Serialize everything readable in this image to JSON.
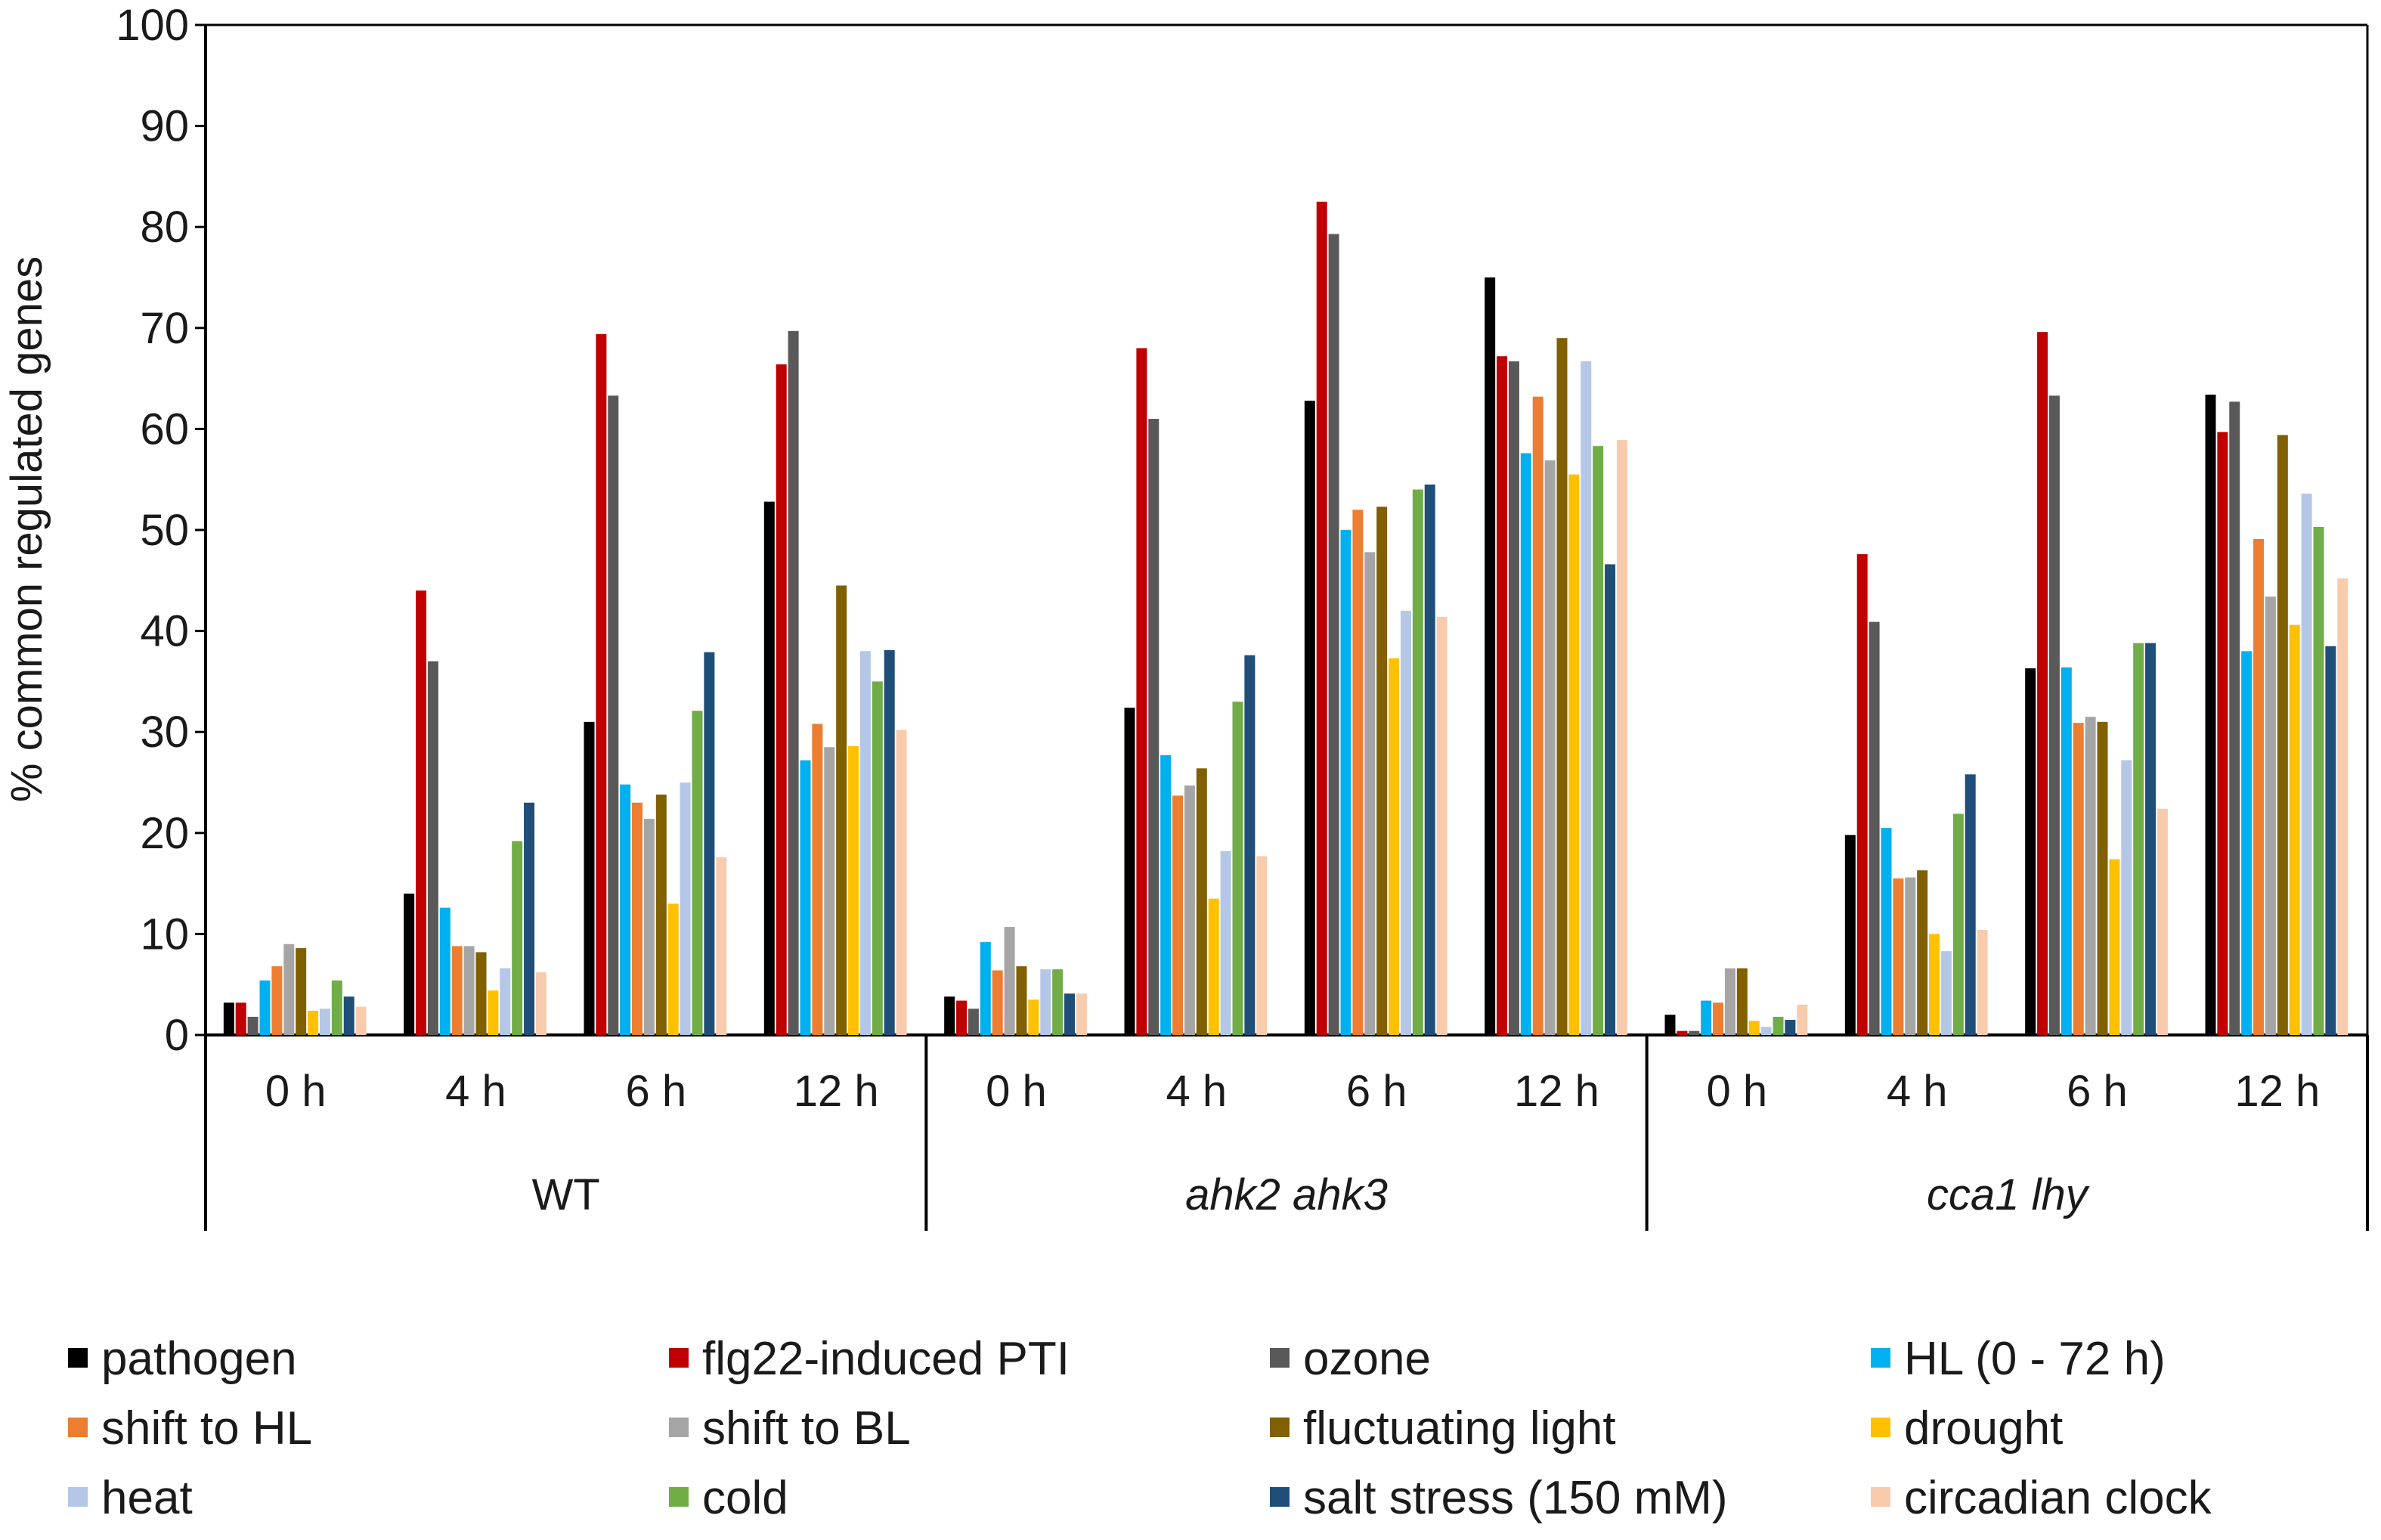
{
  "chart_data": {
    "type": "bar",
    "title": "",
    "xlabel": "",
    "ylabel": "% common regulated genes",
    "ylim": [
      0,
      100
    ],
    "yticks": [
      0,
      10,
      20,
      30,
      40,
      50,
      60,
      70,
      80,
      90,
      100
    ],
    "grid": false,
    "legend_position": "bottom",
    "groups": [
      {
        "label": "WT",
        "italic": false
      },
      {
        "label": "ahk2 ahk3",
        "italic": true
      },
      {
        "label": "cca1 lhy",
        "italic": true
      }
    ],
    "timepoints": [
      "0 h",
      "4 h",
      "6 h",
      "12 h"
    ],
    "categories": [
      "WT 0 h",
      "WT 4 h",
      "WT 6 h",
      "WT 12 h",
      "ahk2 ahk3 0 h",
      "ahk2 ahk3 4 h",
      "ahk2 ahk3 6 h",
      "ahk2 ahk3 12 h",
      "cca1 lhy 0 h",
      "cca1 lhy 4 h",
      "cca1 lhy 6 h",
      "cca1 lhy 12 h"
    ],
    "series": [
      {
        "name": "pathogen",
        "color": "#000000",
        "values": [
          3.2,
          14.0,
          31.0,
          52.8,
          3.8,
          32.4,
          62.8,
          75.0,
          2.0,
          19.8,
          36.3,
          63.4
        ]
      },
      {
        "name": "flg22-induced PTI",
        "color": "#c00000",
        "values": [
          3.2,
          44.0,
          69.4,
          66.4,
          3.4,
          68.0,
          82.5,
          67.2,
          0.4,
          47.6,
          69.6,
          59.7
        ]
      },
      {
        "name": "ozone",
        "color": "#595959",
        "values": [
          1.8,
          37.0,
          63.3,
          69.7,
          2.6,
          61.0,
          79.3,
          66.7,
          0.4,
          40.9,
          63.3,
          62.7
        ]
      },
      {
        "name": "HL (0 - 72 h)",
        "color": "#00b0f0",
        "values": [
          5.4,
          12.6,
          24.8,
          27.2,
          9.2,
          27.7,
          50.0,
          57.6,
          3.4,
          20.5,
          36.4,
          38.0
        ]
      },
      {
        "name": "shift to HL",
        "color": "#ed7d31",
        "values": [
          6.8,
          8.8,
          23.0,
          30.8,
          6.4,
          23.7,
          52.0,
          63.2,
          3.2,
          15.5,
          30.9,
          49.1
        ]
      },
      {
        "name": "shift to BL",
        "color": "#a5a5a5",
        "values": [
          9.0,
          8.8,
          21.4,
          28.5,
          10.7,
          24.7,
          47.8,
          56.9,
          6.6,
          15.6,
          31.5,
          43.4
        ]
      },
      {
        "name": "fluctuating light",
        "color": "#806000",
        "values": [
          8.6,
          8.2,
          23.8,
          44.5,
          6.8,
          26.4,
          52.3,
          69.0,
          6.6,
          16.3,
          31.0,
          59.4
        ]
      },
      {
        "name": "drought",
        "color": "#ffc000",
        "values": [
          2.4,
          4.4,
          13.0,
          28.6,
          3.5,
          13.5,
          37.3,
          55.5,
          1.4,
          10.0,
          17.4,
          40.6
        ]
      },
      {
        "name": "heat",
        "color": "#b4c7e7",
        "values": [
          2.6,
          6.6,
          25.0,
          38.0,
          6.5,
          18.2,
          42.0,
          66.7,
          0.8,
          8.3,
          27.2,
          53.6
        ]
      },
      {
        "name": "cold",
        "color": "#70ad47",
        "values": [
          5.4,
          19.2,
          32.1,
          35.0,
          6.5,
          33.0,
          54.0,
          58.3,
          1.8,
          21.9,
          38.8,
          50.3
        ]
      },
      {
        "name": "salt stress (150 mM)",
        "color": "#1f4e79",
        "values": [
          3.8,
          23.0,
          37.9,
          38.1,
          4.1,
          37.6,
          54.5,
          46.6,
          1.5,
          25.8,
          38.8,
          38.5
        ]
      },
      {
        "name": "circadian clock",
        "color": "#f8cbad",
        "values": [
          2.8,
          6.2,
          17.6,
          30.2,
          4.1,
          17.7,
          41.4,
          58.9,
          3.0,
          10.4,
          22.4,
          45.2
        ]
      }
    ]
  }
}
